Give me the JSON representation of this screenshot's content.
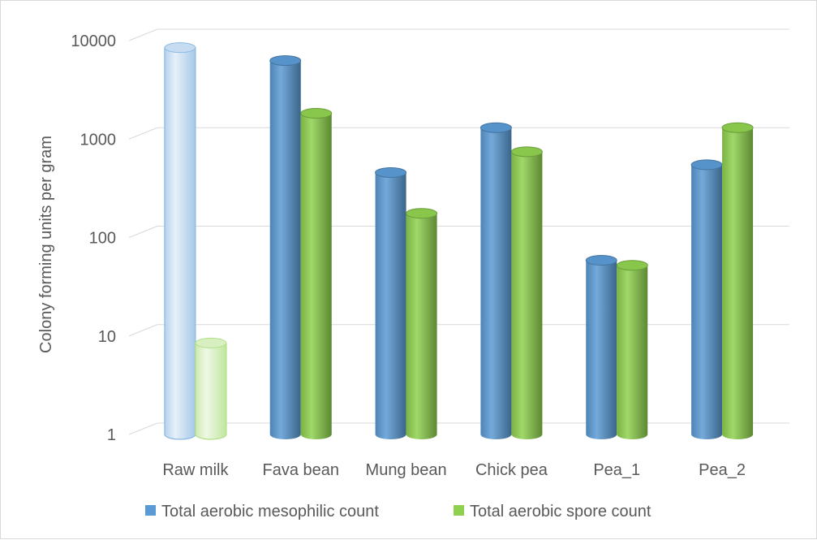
{
  "chart_data": {
    "type": "bar",
    "style": "3d-cylinder",
    "title": "",
    "xlabel": "",
    "ylabel": "Colony forming units per gram",
    "yscale": "log",
    "ylim": [
      1,
      10000
    ],
    "yticks": [
      "1",
      "10",
      "100",
      "1000",
      "10000"
    ],
    "categories": [
      "Raw milk",
      "Fava bean",
      "Mung bean",
      "Chick pea",
      "Pea_1",
      "Pea_2"
    ],
    "series": [
      {
        "name": "Total aerobic mesophilic count",
        "color": "#5B9BD5",
        "values": [
          6500,
          4800,
          350,
          1000,
          45,
          420
        ]
      },
      {
        "name": "Total aerobic spore count",
        "color": "#8FD14F",
        "values": [
          6.5,
          1400,
          135,
          570,
          40,
          1000
        ]
      }
    ],
    "highlight_faded_category": "Raw milk",
    "grid": true,
    "legend": "bottom"
  }
}
